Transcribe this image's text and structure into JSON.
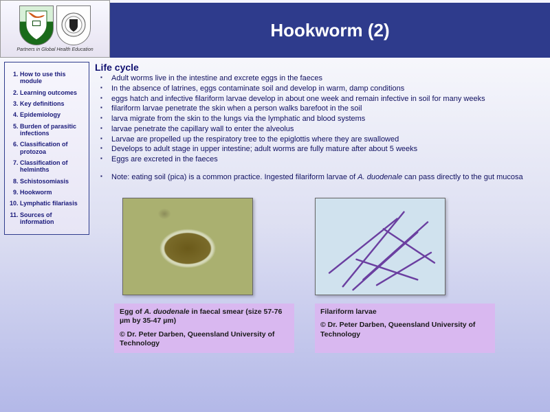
{
  "header": {
    "title": "Hookworm (2)",
    "logos_caption": "Partners in Global Health Education"
  },
  "nav": {
    "items": [
      "How to use this module",
      "Learning outcomes",
      "Key definitions",
      "Epidemiology",
      "Burden of parasitic infections",
      "Classification of protozoa",
      "Classification of helminths",
      "Schistosomiasis",
      "Hookworm",
      "Lymphatic filariasis",
      "Sources of information"
    ]
  },
  "main": {
    "section_title": "Life cycle",
    "bullets": [
      "Adult worms live in the intestine and excrete eggs in the faeces",
      "In the absence of latrines, eggs contaminate soil and develop in warm, damp conditions",
      "eggs hatch and infective filariform larvae develop in about one week and remain infective in soil for many weeks",
      "filariform larvae penetrate the skin when a person walks barefoot in the soil",
      "larva migrate from the skin to the lungs via the lymphatic and blood systems",
      "larvae penetrate the capillary wall to enter the alveolus",
      "Larvae are propelled up the respiratory tree to the epiglottis where they are swallowed",
      "Develops to adult stage in upper intestine; adult worms are fully mature after about 5 weeks",
      "Eggs are excreted in the faeces"
    ],
    "note_prefix": "Note: eating soil (pica) is a common practice. Ingested filariform larvae of ",
    "note_em": "A. duodenale",
    "note_suffix": " can pass directly to the gut mucosa"
  },
  "captions": {
    "a": {
      "line1_pre": "Egg of ",
      "line1_em": "A. duodenale",
      "line1_post": " in faecal smear (size 57-76 µm by 35-47 µm)",
      "line2": "© Dr. Peter Darben, Queensland University of Technology"
    },
    "b": {
      "line1": "Filariform larvae",
      "line2": "© Dr. Peter Darben, Queensland University of Technology"
    }
  },
  "figures": {
    "larvae_lines": [
      [
        20,
        110,
        120,
        30
      ],
      [
        40,
        130,
        130,
        20
      ],
      [
        55,
        135,
        150,
        50
      ],
      [
        70,
        120,
        165,
        35
      ],
      [
        90,
        128,
        170,
        80
      ],
      [
        60,
        90,
        150,
        120
      ],
      [
        100,
        45,
        175,
        95
      ]
    ],
    "larvae_color": "#6b3fa0"
  },
  "colors": {
    "brand": "#2e3b8c",
    "text": "#101060",
    "caption_bg": "#d9b8f0"
  }
}
